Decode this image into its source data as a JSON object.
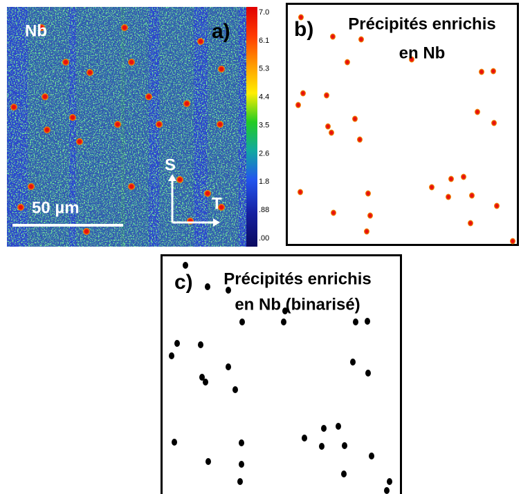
{
  "panel_a": {
    "label": "a)",
    "element": "Nb",
    "scale_bar": "50 µm",
    "axis_s": "S",
    "axis_t": "T",
    "colorbar_ticks": [
      "7.0",
      "6.1",
      "5.3",
      "4.4",
      "3.5",
      "2.6",
      "1.8",
      ".88",
      ".00"
    ]
  },
  "panel_b": {
    "label": "b)",
    "title_lines": [
      "Précipités enrichis",
      "en Nb"
    ]
  },
  "panel_c": {
    "label": "c)",
    "title_lines": [
      "Précipités enrichis",
      "en Nb (binarisé)"
    ]
  }
}
